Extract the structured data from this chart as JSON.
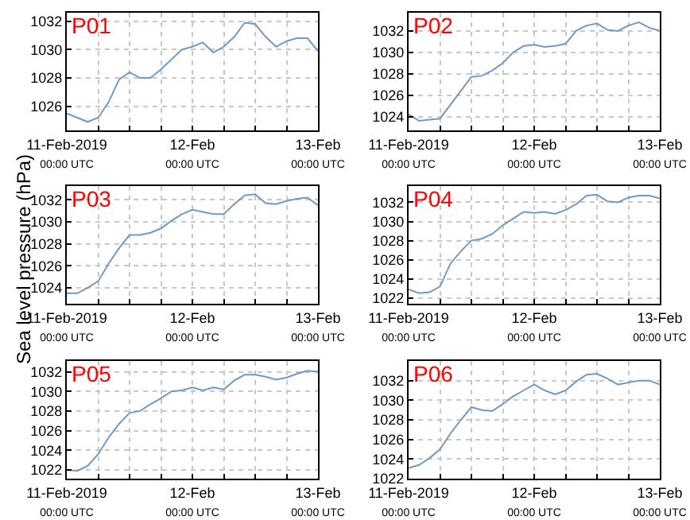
{
  "chart_data": [
    {
      "type": "line",
      "title": "P01",
      "x": [
        "2019-02-11T00:00",
        "2019-02-11T02:00",
        "2019-02-11T04:00",
        "2019-02-11T06:00",
        "2019-02-11T08:00",
        "2019-02-11T10:00",
        "2019-02-11T12:00",
        "2019-02-11T14:00",
        "2019-02-11T16:00",
        "2019-02-11T18:00",
        "2019-02-11T20:00",
        "2019-02-11T22:00",
        "2019-02-12T00:00",
        "2019-02-12T02:00",
        "2019-02-12T04:00",
        "2019-02-12T06:00",
        "2019-02-12T08:00",
        "2019-02-12T10:00",
        "2019-02-12T12:00",
        "2019-02-12T14:00",
        "2019-02-12T16:00",
        "2019-02-12T18:00",
        "2019-02-12T20:00",
        "2019-02-12T22:00",
        "2019-02-13T00:00"
      ],
      "series": [
        {
          "color": "#6f9ac8",
          "values": [
            1025.5,
            1025.2,
            1024.9,
            1025.2,
            1026.3,
            1027.9,
            1028.4,
            1028.0,
            1028.0,
            1028.6,
            1029.3,
            1030.0,
            1030.2,
            1030.5,
            1029.8,
            1030.2,
            1030.9,
            1031.9,
            1031.8,
            1030.9,
            1030.2,
            1030.6,
            1030.8,
            1030.8,
            1029.9
          ]
        }
      ],
      "xlim": [
        "2019-02-11T00:00",
        "2019-02-13T00:00"
      ],
      "xticks": [
        {
          "value": "2019-02-11T00:00",
          "label": "11-Feb-2019\n00:00 UTC"
        },
        {
          "value": "2019-02-11T06:00",
          "label": null
        },
        {
          "value": "2019-02-11T12:00",
          "label": null
        },
        {
          "value": "2019-02-11T18:00",
          "label": null
        },
        {
          "value": "2019-02-12T00:00",
          "label": "12-Feb\n00:00 UTC"
        },
        {
          "value": "2019-02-12T06:00",
          "label": null
        },
        {
          "value": "2019-02-12T12:00",
          "label": null
        },
        {
          "value": "2019-02-12T18:00",
          "label": null
        },
        {
          "value": "2019-02-13T00:00",
          "label": "13-Feb\n00:00 UTC"
        }
      ],
      "ylim": [
        1024.3,
        1032.6
      ],
      "yticks": [
        1026,
        1028,
        1030,
        1032
      ],
      "grid": true
    },
    {
      "type": "line",
      "title": "P02",
      "x": [
        "2019-02-11T00:00",
        "2019-02-11T02:00",
        "2019-02-11T04:00",
        "2019-02-11T06:00",
        "2019-02-11T08:00",
        "2019-02-11T10:00",
        "2019-02-11T12:00",
        "2019-02-11T14:00",
        "2019-02-11T16:00",
        "2019-02-11T18:00",
        "2019-02-11T20:00",
        "2019-02-11T22:00",
        "2019-02-12T00:00",
        "2019-02-12T02:00",
        "2019-02-12T04:00",
        "2019-02-12T06:00",
        "2019-02-12T08:00",
        "2019-02-12T10:00",
        "2019-02-12T12:00",
        "2019-02-12T14:00",
        "2019-02-12T16:00",
        "2019-02-12T18:00",
        "2019-02-12T20:00",
        "2019-02-12T22:00",
        "2019-02-13T00:00"
      ],
      "series": [
        {
          "color": "#6f9ac8",
          "values": [
            1024.2,
            1023.6,
            1023.7,
            1023.8,
            1025.1,
            1026.4,
            1027.7,
            1027.8,
            1028.3,
            1029.0,
            1030.0,
            1030.6,
            1030.7,
            1030.5,
            1030.6,
            1030.8,
            1032.0,
            1032.5,
            1032.7,
            1032.1,
            1032.0,
            1032.5,
            1032.8,
            1032.3,
            1032.0
          ]
        }
      ],
      "xlim": [
        "2019-02-11T00:00",
        "2019-02-13T00:00"
      ],
      "xticks": [
        {
          "value": "2019-02-11T00:00",
          "label": "11-Feb-2019\n00:00 UTC"
        },
        {
          "value": "2019-02-11T06:00",
          "label": null
        },
        {
          "value": "2019-02-11T12:00",
          "label": null
        },
        {
          "value": "2019-02-11T18:00",
          "label": null
        },
        {
          "value": "2019-02-12T00:00",
          "label": "12-Feb\n00:00 UTC"
        },
        {
          "value": "2019-02-12T06:00",
          "label": null
        },
        {
          "value": "2019-02-12T12:00",
          "label": null
        },
        {
          "value": "2019-02-12T18:00",
          "label": null
        },
        {
          "value": "2019-02-13T00:00",
          "label": "13-Feb\n00:00 UTC"
        }
      ],
      "ylim": [
        1022.7,
        1033.7
      ],
      "yticks": [
        1024,
        1026,
        1028,
        1030,
        1032
      ],
      "grid": true
    },
    {
      "type": "line",
      "title": "P03",
      "ylabel": "Sea level pressure (hPa)",
      "x": [
        "2019-02-11T00:00",
        "2019-02-11T02:00",
        "2019-02-11T04:00",
        "2019-02-11T06:00",
        "2019-02-11T08:00",
        "2019-02-11T10:00",
        "2019-02-11T12:00",
        "2019-02-11T14:00",
        "2019-02-11T16:00",
        "2019-02-11T18:00",
        "2019-02-11T20:00",
        "2019-02-11T22:00",
        "2019-02-12T00:00",
        "2019-02-12T02:00",
        "2019-02-12T04:00",
        "2019-02-12T06:00",
        "2019-02-12T08:00",
        "2019-02-12T10:00",
        "2019-02-12T12:00",
        "2019-02-12T14:00",
        "2019-02-12T16:00",
        "2019-02-12T18:00",
        "2019-02-12T20:00",
        "2019-02-12T22:00",
        "2019-02-13T00:00"
      ],
      "series": [
        {
          "color": "#6f9ac8",
          "values": [
            1023.5,
            1023.5,
            1024.0,
            1024.6,
            1026.2,
            1027.6,
            1028.8,
            1028.8,
            1029.0,
            1029.4,
            1030.1,
            1030.7,
            1031.1,
            1030.9,
            1030.7,
            1030.7,
            1031.6,
            1032.4,
            1032.5,
            1031.7,
            1031.6,
            1031.9,
            1032.1,
            1032.2,
            1031.5
          ]
        }
      ],
      "xlim": [
        "2019-02-11T00:00",
        "2019-02-13T00:00"
      ],
      "xticks": [
        {
          "value": "2019-02-11T00:00",
          "label": "11-Feb-2019\n00:00 UTC"
        },
        {
          "value": "2019-02-11T06:00",
          "label": null
        },
        {
          "value": "2019-02-11T12:00",
          "label": null
        },
        {
          "value": "2019-02-11T18:00",
          "label": null
        },
        {
          "value": "2019-02-12T00:00",
          "label": "12-Feb\n00:00 UTC"
        },
        {
          "value": "2019-02-12T06:00",
          "label": null
        },
        {
          "value": "2019-02-12T12:00",
          "label": null
        },
        {
          "value": "2019-02-12T18:00",
          "label": null
        },
        {
          "value": "2019-02-13T00:00",
          "label": "13-Feb\n00:00 UTC"
        }
      ],
      "ylim": [
        1022.55,
        1033.25
      ],
      "yticks": [
        1024,
        1026,
        1028,
        1030,
        1032
      ],
      "grid": true
    },
    {
      "type": "line",
      "title": "P04",
      "x": [
        "2019-02-11T00:00",
        "2019-02-11T02:00",
        "2019-02-11T04:00",
        "2019-02-11T06:00",
        "2019-02-11T08:00",
        "2019-02-11T10:00",
        "2019-02-11T12:00",
        "2019-02-11T14:00",
        "2019-02-11T16:00",
        "2019-02-11T18:00",
        "2019-02-11T20:00",
        "2019-02-11T22:00",
        "2019-02-12T00:00",
        "2019-02-12T02:00",
        "2019-02-12T04:00",
        "2019-02-12T06:00",
        "2019-02-12T08:00",
        "2019-02-12T10:00",
        "2019-02-12T12:00",
        "2019-02-12T14:00",
        "2019-02-12T16:00",
        "2019-02-12T18:00",
        "2019-02-12T20:00",
        "2019-02-12T22:00",
        "2019-02-13T00:00"
      ],
      "series": [
        {
          "color": "#6f9ac8",
          "values": [
            1022.9,
            1022.5,
            1022.6,
            1023.2,
            1025.6,
            1026.9,
            1028.0,
            1028.2,
            1028.7,
            1029.6,
            1030.3,
            1031.0,
            1030.9,
            1031.0,
            1030.8,
            1031.2,
            1031.8,
            1032.7,
            1032.8,
            1032.1,
            1032.0,
            1032.5,
            1032.7,
            1032.7,
            1032.4
          ]
        }
      ],
      "xlim": [
        "2019-02-11T00:00",
        "2019-02-13T00:00"
      ],
      "xticks": [
        {
          "value": "2019-02-11T00:00",
          "label": "11-Feb-2019\n00:00 UTC"
        },
        {
          "value": "2019-02-11T06:00",
          "label": null
        },
        {
          "value": "2019-02-11T12:00",
          "label": null
        },
        {
          "value": "2019-02-11T18:00",
          "label": null
        },
        {
          "value": "2019-02-12T00:00",
          "label": "12-Feb\n00:00 UTC"
        },
        {
          "value": "2019-02-12T06:00",
          "label": null
        },
        {
          "value": "2019-02-12T12:00",
          "label": null
        },
        {
          "value": "2019-02-12T18:00",
          "label": null
        },
        {
          "value": "2019-02-13T00:00",
          "label": "13-Feb\n00:00 UTC"
        }
      ],
      "ylim": [
        1021.4,
        1033.7
      ],
      "yticks": [
        1022,
        1024,
        1026,
        1028,
        1030,
        1032
      ],
      "grid": true
    },
    {
      "type": "line",
      "title": "P05",
      "x": [
        "2019-02-11T00:00",
        "2019-02-11T02:00",
        "2019-02-11T04:00",
        "2019-02-11T06:00",
        "2019-02-11T08:00",
        "2019-02-11T10:00",
        "2019-02-11T12:00",
        "2019-02-11T14:00",
        "2019-02-11T16:00",
        "2019-02-11T18:00",
        "2019-02-11T20:00",
        "2019-02-11T22:00",
        "2019-02-12T00:00",
        "2019-02-12T02:00",
        "2019-02-12T04:00",
        "2019-02-12T06:00",
        "2019-02-12T08:00",
        "2019-02-12T10:00",
        "2019-02-12T12:00",
        "2019-02-12T14:00",
        "2019-02-12T16:00",
        "2019-02-12T18:00",
        "2019-02-12T20:00",
        "2019-02-12T22:00",
        "2019-02-13T00:00"
      ],
      "series": [
        {
          "color": "#6f9ac8",
          "values": [
            1022.0,
            1021.9,
            1022.4,
            1023.6,
            1025.3,
            1026.7,
            1027.8,
            1028.0,
            1028.7,
            1029.3,
            1030.0,
            1030.1,
            1030.4,
            1030.1,
            1030.4,
            1030.2,
            1031.1,
            1031.7,
            1031.7,
            1031.5,
            1031.2,
            1031.4,
            1031.8,
            1032.1,
            1032.0
          ]
        }
      ],
      "xlim": [
        "2019-02-11T00:00",
        "2019-02-13T00:00"
      ],
      "xticks": [
        {
          "value": "2019-02-11T00:00",
          "label": "11-Feb-2019\n00:00 UTC"
        },
        {
          "value": "2019-02-11T06:00",
          "label": null
        },
        {
          "value": "2019-02-11T12:00",
          "label": null
        },
        {
          "value": "2019-02-11T18:00",
          "label": null
        },
        {
          "value": "2019-02-12T00:00",
          "label": "12-Feb\n00:00 UTC"
        },
        {
          "value": "2019-02-12T06:00",
          "label": null
        },
        {
          "value": "2019-02-12T12:00",
          "label": null
        },
        {
          "value": "2019-02-12T18:00",
          "label": null
        },
        {
          "value": "2019-02-13T00:00",
          "label": "13-Feb\n00:00 UTC"
        }
      ],
      "ylim": [
        1021.1,
        1033.1
      ],
      "yticks": [
        1022,
        1024,
        1026,
        1028,
        1030,
        1032
      ],
      "grid": true
    },
    {
      "type": "line",
      "title": "P06",
      "x": [
        "2019-02-11T00:00",
        "2019-02-11T02:00",
        "2019-02-11T04:00",
        "2019-02-11T06:00",
        "2019-02-11T08:00",
        "2019-02-11T10:00",
        "2019-02-11T12:00",
        "2019-02-11T14:00",
        "2019-02-11T16:00",
        "2019-02-11T18:00",
        "2019-02-11T20:00",
        "2019-02-11T22:00",
        "2019-02-12T00:00",
        "2019-02-12T02:00",
        "2019-02-12T04:00",
        "2019-02-12T06:00",
        "2019-02-12T08:00",
        "2019-02-12T10:00",
        "2019-02-12T12:00",
        "2019-02-12T14:00",
        "2019-02-12T16:00",
        "2019-02-12T18:00",
        "2019-02-12T20:00",
        "2019-02-12T22:00",
        "2019-02-13T00:00"
      ],
      "series": [
        {
          "color": "#6f9ac8",
          "values": [
            1023.1,
            1023.4,
            1024.1,
            1025.0,
            1026.6,
            1028.0,
            1029.3,
            1029.0,
            1028.9,
            1029.6,
            1030.4,
            1031.0,
            1031.6,
            1031.0,
            1030.6,
            1031.0,
            1031.9,
            1032.6,
            1032.7,
            1032.2,
            1031.6,
            1031.8,
            1032.0,
            1032.0,
            1031.6
          ]
        }
      ],
      "xlim": [
        "2019-02-11T00:00",
        "2019-02-13T00:00"
      ],
      "xticks": [
        {
          "value": "2019-02-11T00:00",
          "label": "11-Feb-2019\n00:00 UTC"
        },
        {
          "value": "2019-02-11T06:00",
          "label": null
        },
        {
          "value": "2019-02-11T12:00",
          "label": null
        },
        {
          "value": "2019-02-11T18:00",
          "label": null
        },
        {
          "value": "2019-02-12T00:00",
          "label": "12-Feb\n00:00 UTC"
        },
        {
          "value": "2019-02-12T06:00",
          "label": null
        },
        {
          "value": "2019-02-12T12:00",
          "label": null
        },
        {
          "value": "2019-02-12T18:00",
          "label": null
        },
        {
          "value": "2019-02-13T00:00",
          "label": "13-Feb\n00:00 UTC"
        }
      ],
      "ylim": [
        1022.0,
        1034.0
      ],
      "yticks": [
        1022,
        1024,
        1026,
        1028,
        1030,
        1032
      ],
      "grid": true
    }
  ]
}
